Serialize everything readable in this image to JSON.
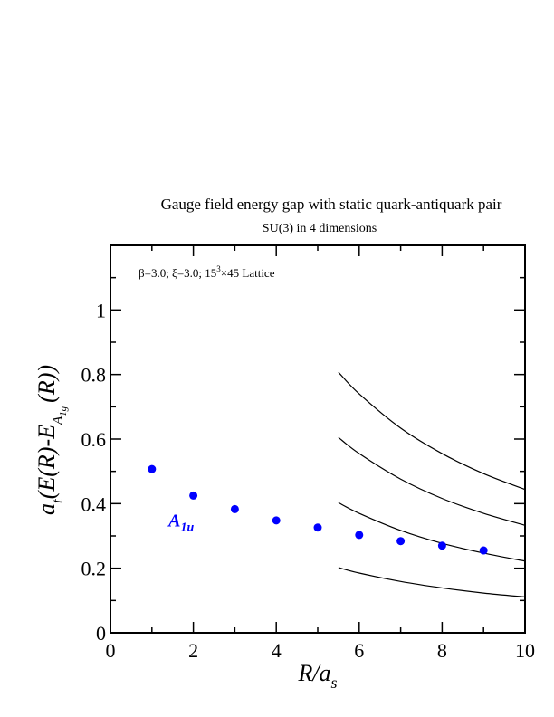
{
  "chart_data": {
    "type": "scatter",
    "title": "Gauge field energy gap with static quark-antiquark pair",
    "subtitle": "SU(3) in 4 dimensions",
    "annotation": {
      "pre": "β=3.0;  ξ=3.0;  15",
      "sup": "3",
      "post": "×45 Lattice"
    },
    "xlabel": {
      "main": "R/a",
      "sub": "s"
    },
    "ylabel": {
      "a": "a",
      "t": "t",
      "open": "(E(R)-E",
      "A": "A",
      "sub": "1g",
      "close": "(R))"
    },
    "xlim": [
      0,
      10
    ],
    "ylim": [
      0,
      1.2
    ],
    "x_ticks": [
      "0",
      "2",
      "4",
      "6",
      "8",
      "10"
    ],
    "y_ticks": [
      "0",
      "0.2",
      "0.4",
      "0.6",
      "0.8",
      "1"
    ],
    "series": [
      {
        "name": "A1u",
        "label_main": "A",
        "label_sub": "1u",
        "color": "#0000ff",
        "label_at": [
          1.4,
          0.33
        ],
        "x": [
          1,
          2,
          3,
          4,
          5,
          6,
          7,
          8,
          9
        ],
        "y": [
          0.507,
          0.425,
          0.383,
          0.348,
          0.326,
          0.303,
          0.284,
          0.27,
          0.255
        ]
      }
    ],
    "curves": [
      {
        "x": [
          5.5,
          6,
          7,
          8,
          9,
          10
        ],
        "y": [
          0.807,
          0.74,
          0.634,
          0.555,
          0.493,
          0.444
        ]
      },
      {
        "x": [
          5.5,
          6,
          7,
          8,
          9,
          10
        ],
        "y": [
          0.605,
          0.555,
          0.476,
          0.416,
          0.37,
          0.333
        ]
      },
      {
        "x": [
          5.5,
          6,
          7,
          8,
          9,
          10
        ],
        "y": [
          0.403,
          0.37,
          0.317,
          0.277,
          0.247,
          0.222
        ]
      },
      {
        "x": [
          5.5,
          6,
          7,
          8,
          9,
          10
        ],
        "y": [
          0.202,
          0.185,
          0.159,
          0.139,
          0.123,
          0.111
        ]
      }
    ],
    "grid": false,
    "legend": "none"
  }
}
